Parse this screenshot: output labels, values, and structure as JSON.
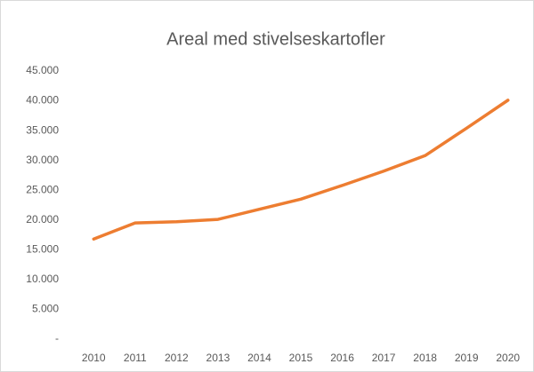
{
  "chart_data": {
    "type": "line",
    "title": "Areal med stivelseskartofler",
    "categories": [
      "2010",
      "2011",
      "2012",
      "2013",
      "2014",
      "2015",
      "2016",
      "2017",
      "2018",
      "2019",
      "2020"
    ],
    "series": [
      {
        "color": "#ed7d31",
        "values": [
          16800,
          19500,
          19700,
          20100,
          21800,
          23500,
          25800,
          28200,
          30800,
          35400,
          40100
        ]
      }
    ],
    "ylim": [
      0,
      45000
    ],
    "yticks": [
      {
        "value": 0,
        "label": "-"
      },
      {
        "value": 5000,
        "label": "5.000"
      },
      {
        "value": 10000,
        "label": "10.000"
      },
      {
        "value": 15000,
        "label": "15.000"
      },
      {
        "value": 20000,
        "label": "20.000"
      },
      {
        "value": 25000,
        "label": "25.000"
      },
      {
        "value": 30000,
        "label": "30.000"
      },
      {
        "value": 35000,
        "label": "35.000"
      },
      {
        "value": 40000,
        "label": "40.000"
      },
      {
        "value": 45000,
        "label": "45.000"
      }
    ],
    "grid": false
  }
}
